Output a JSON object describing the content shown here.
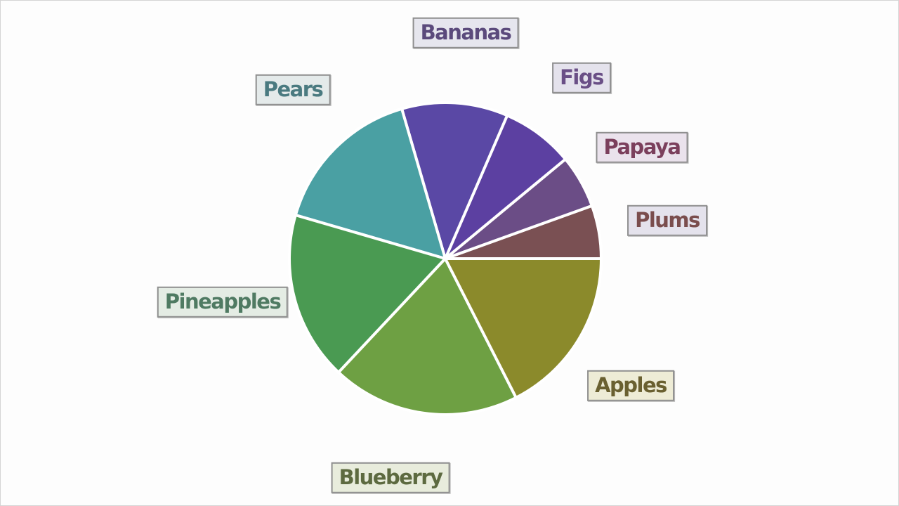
{
  "chart_data": {
    "type": "pie",
    "start_angle_deg": 0,
    "direction": "counterclockwise",
    "categories": [
      "Plums",
      "Papaya",
      "Figs",
      "Bananas",
      "Pears",
      "Pineapples",
      "Blueberry",
      "Apples"
    ],
    "values": [
      5.5,
      5.5,
      7.5,
      11,
      16,
      17.5,
      19.5,
      17.5
    ],
    "colors": [
      "#7a5053",
      "#6b4d86",
      "#5c40a1",
      "#5a48a5",
      "#4aa0a3",
      "#4a9a52",
      "#6ea043",
      "#8b8a2b"
    ],
    "label_text_colors": [
      "#7a4d4d",
      "#7b3f5c",
      "#6a4f86",
      "#5b4a7c",
      "#4a7a80",
      "#4f7a62",
      "#5d6a40",
      "#6a6030"
    ],
    "label_fills": [
      "#e4e2ec",
      "#eae2ec",
      "#e4e2ec",
      "#e6e6ee",
      "#e4eaea",
      "#e4ece4",
      "#e8ecdc",
      "#eeecd6"
    ]
  }
}
